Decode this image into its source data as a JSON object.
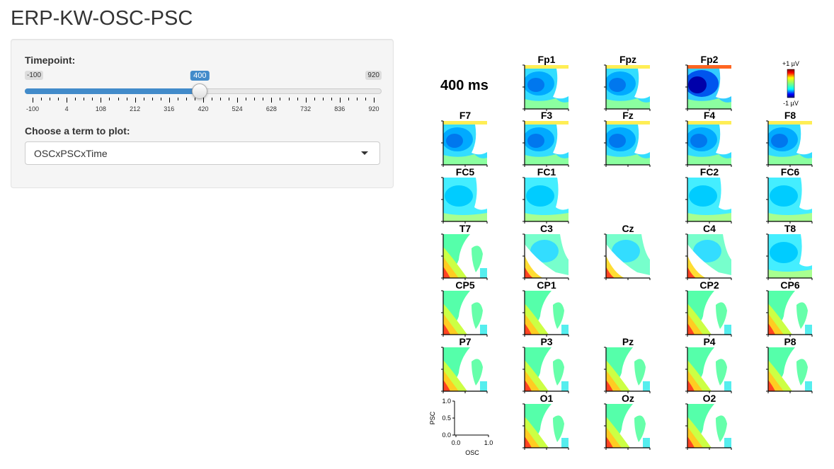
{
  "app": {
    "title": "ERP-KW-OSC-PSC"
  },
  "controls": {
    "timepoint_label": "Timepoint:",
    "slider": {
      "min": -100,
      "max": 920,
      "value": 400,
      "min_label": "-100",
      "max_label": "920",
      "value_label": "400",
      "ticks": [
        "-100",
        "4",
        "108",
        "212",
        "316",
        "420",
        "524",
        "628",
        "732",
        "836",
        "920"
      ]
    },
    "term_label": "Choose a term to plot:",
    "term_select": {
      "value": "OSCxPSCxTime"
    },
    "accent_color": "#428bca"
  },
  "plot": {
    "time_label": "400 ms",
    "colorbar": {
      "max_label": "+1 µV",
      "min_label": "-1 µV"
    },
    "colormap": "jet",
    "electrodes": [
      {
        "name": "Fp1",
        "col": 1,
        "row": 0,
        "pattern": "frontal"
      },
      {
        "name": "Fpz",
        "col": 2,
        "row": 0,
        "pattern": "frontal"
      },
      {
        "name": "Fp2",
        "col": 3,
        "row": 0,
        "pattern": "frontal-strong"
      },
      {
        "name": "F7",
        "col": 0,
        "row": 1,
        "pattern": "frontal"
      },
      {
        "name": "F3",
        "col": 1,
        "row": 1,
        "pattern": "frontal"
      },
      {
        "name": "Fz",
        "col": 2,
        "row": 1,
        "pattern": "frontal"
      },
      {
        "name": "F4",
        "col": 3,
        "row": 1,
        "pattern": "frontal"
      },
      {
        "name": "F8",
        "col": 4,
        "row": 1,
        "pattern": "frontal"
      },
      {
        "name": "FC5",
        "col": 0,
        "row": 2,
        "pattern": "mild"
      },
      {
        "name": "FC1",
        "col": 1,
        "row": 2,
        "pattern": "mild"
      },
      {
        "name": "FC2",
        "col": 3,
        "row": 2,
        "pattern": "mild"
      },
      {
        "name": "FC6",
        "col": 4,
        "row": 2,
        "pattern": "mild"
      },
      {
        "name": "T7",
        "col": 0,
        "row": 3,
        "pattern": "posterior"
      },
      {
        "name": "C3",
        "col": 1,
        "row": 3,
        "pattern": "central"
      },
      {
        "name": "Cz",
        "col": 2,
        "row": 3,
        "pattern": "central"
      },
      {
        "name": "C4",
        "col": 3,
        "row": 3,
        "pattern": "central"
      },
      {
        "name": "T8",
        "col": 4,
        "row": 3,
        "pattern": "mild"
      },
      {
        "name": "CP5",
        "col": 0,
        "row": 4,
        "pattern": "posterior"
      },
      {
        "name": "CP1",
        "col": 1,
        "row": 4,
        "pattern": "posterior"
      },
      {
        "name": "CP2",
        "col": 3,
        "row": 4,
        "pattern": "posterior"
      },
      {
        "name": "CP6",
        "col": 4,
        "row": 4,
        "pattern": "posterior"
      },
      {
        "name": "P7",
        "col": 0,
        "row": 5,
        "pattern": "posterior"
      },
      {
        "name": "P3",
        "col": 1,
        "row": 5,
        "pattern": "posterior"
      },
      {
        "name": "Pz",
        "col": 2,
        "row": 5,
        "pattern": "posterior"
      },
      {
        "name": "P4",
        "col": 3,
        "row": 5,
        "pattern": "posterior"
      },
      {
        "name": "P8",
        "col": 4,
        "row": 5,
        "pattern": "posterior"
      },
      {
        "name": "O1",
        "col": 1,
        "row": 6,
        "pattern": "posterior"
      },
      {
        "name": "Oz",
        "col": 2,
        "row": 6,
        "pattern": "posterior"
      },
      {
        "name": "O2",
        "col": 3,
        "row": 6,
        "pattern": "posterior"
      }
    ],
    "legend_axes": {
      "xlabel": "OSC",
      "ylabel": "PSC",
      "x_ticks": [
        "0.0",
        "1.0"
      ],
      "y_ticks": [
        "1.0",
        "0.5",
        "0.0"
      ]
    }
  }
}
